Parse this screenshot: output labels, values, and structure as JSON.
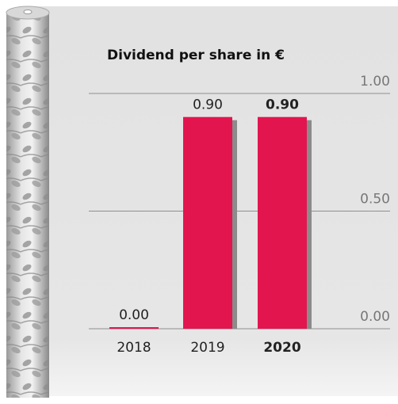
{
  "chart_data": {
    "type": "bar",
    "title": "Dividend per share in €",
    "categories": [
      "2018",
      "2019",
      "2020"
    ],
    "values": [
      0,
      0.9,
      0.9
    ],
    "value_labels": [
      "0.00",
      "0.90",
      "0.90"
    ],
    "color": "#e2154f",
    "ylim": [
      0,
      1
    ],
    "yticks": [
      {
        "value": 0,
        "label": "0.00"
      },
      {
        "value": 0.5,
        "label": "0.50"
      },
      {
        "value": 1,
        "label": "1.00"
      }
    ],
    "grid": true
  }
}
